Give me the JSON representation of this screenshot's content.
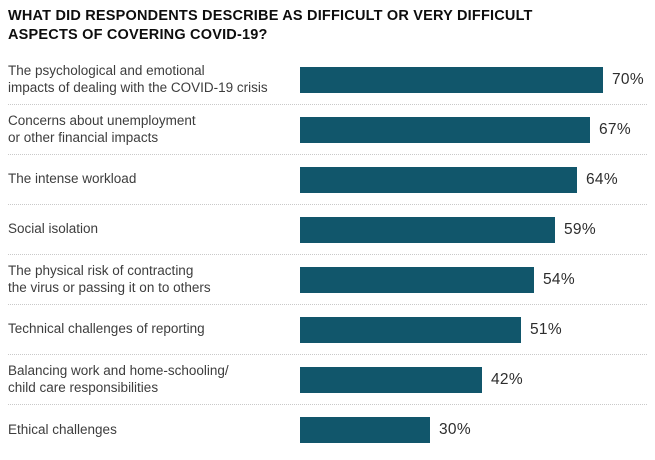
{
  "chart_data": {
    "type": "bar",
    "orientation": "horizontal",
    "title": "WHAT DID RESPONDENTS DESCRIBE AS DIFFICULT OR VERY DIFFICULT ASPECTS OF COVERING COVID-19?",
    "title_lines": [
      "WHAT DID RESPONDENTS DESCRIBE AS DIFFICULT OR VERY DIFFICULT",
      "ASPECTS OF COVERING COVID-19?"
    ],
    "categories": [
      "The psychological and emotional impacts of dealing with the COVID-19 crisis",
      "Concerns about unemployment or other financial impacts",
      "The intense workload",
      "Social isolation",
      "The physical risk of contracting the virus or passing it on to others",
      "Technical challenges of reporting",
      "Balancing work and home-schooling/child care responsibilities",
      "Ethical challenges"
    ],
    "values": [
      70,
      67,
      64,
      59,
      54,
      51,
      42,
      30
    ],
    "value_suffix": "%",
    "xlim": [
      0,
      70
    ],
    "grid": false,
    "legend": false,
    "rows": [
      {
        "label": "The psychological and emotional\nimpacts of dealing with the COVID-19 crisis",
        "value": 70
      },
      {
        "label": "Concerns about unemployment\nor other financial impacts",
        "value": 67
      },
      {
        "label": "The intense workload",
        "value": 64
      },
      {
        "label": "Social isolation",
        "value": 59
      },
      {
        "label": "The physical risk of contracting\nthe virus or passing it on to others",
        "value": 54
      },
      {
        "label": "Technical challenges of reporting",
        "value": 51
      },
      {
        "label": "Balancing work and home-schooling/\nchild care responsibilities",
        "value": 42
      },
      {
        "label": "Ethical challenges",
        "value": 30
      }
    ]
  },
  "colors": {
    "bar": "#11566b",
    "title": "#0d0d0d",
    "category_label": "#3d3d3d",
    "value_label": "#2d2d2d",
    "separator": "#c9c9c9",
    "background": "#ffffff"
  }
}
